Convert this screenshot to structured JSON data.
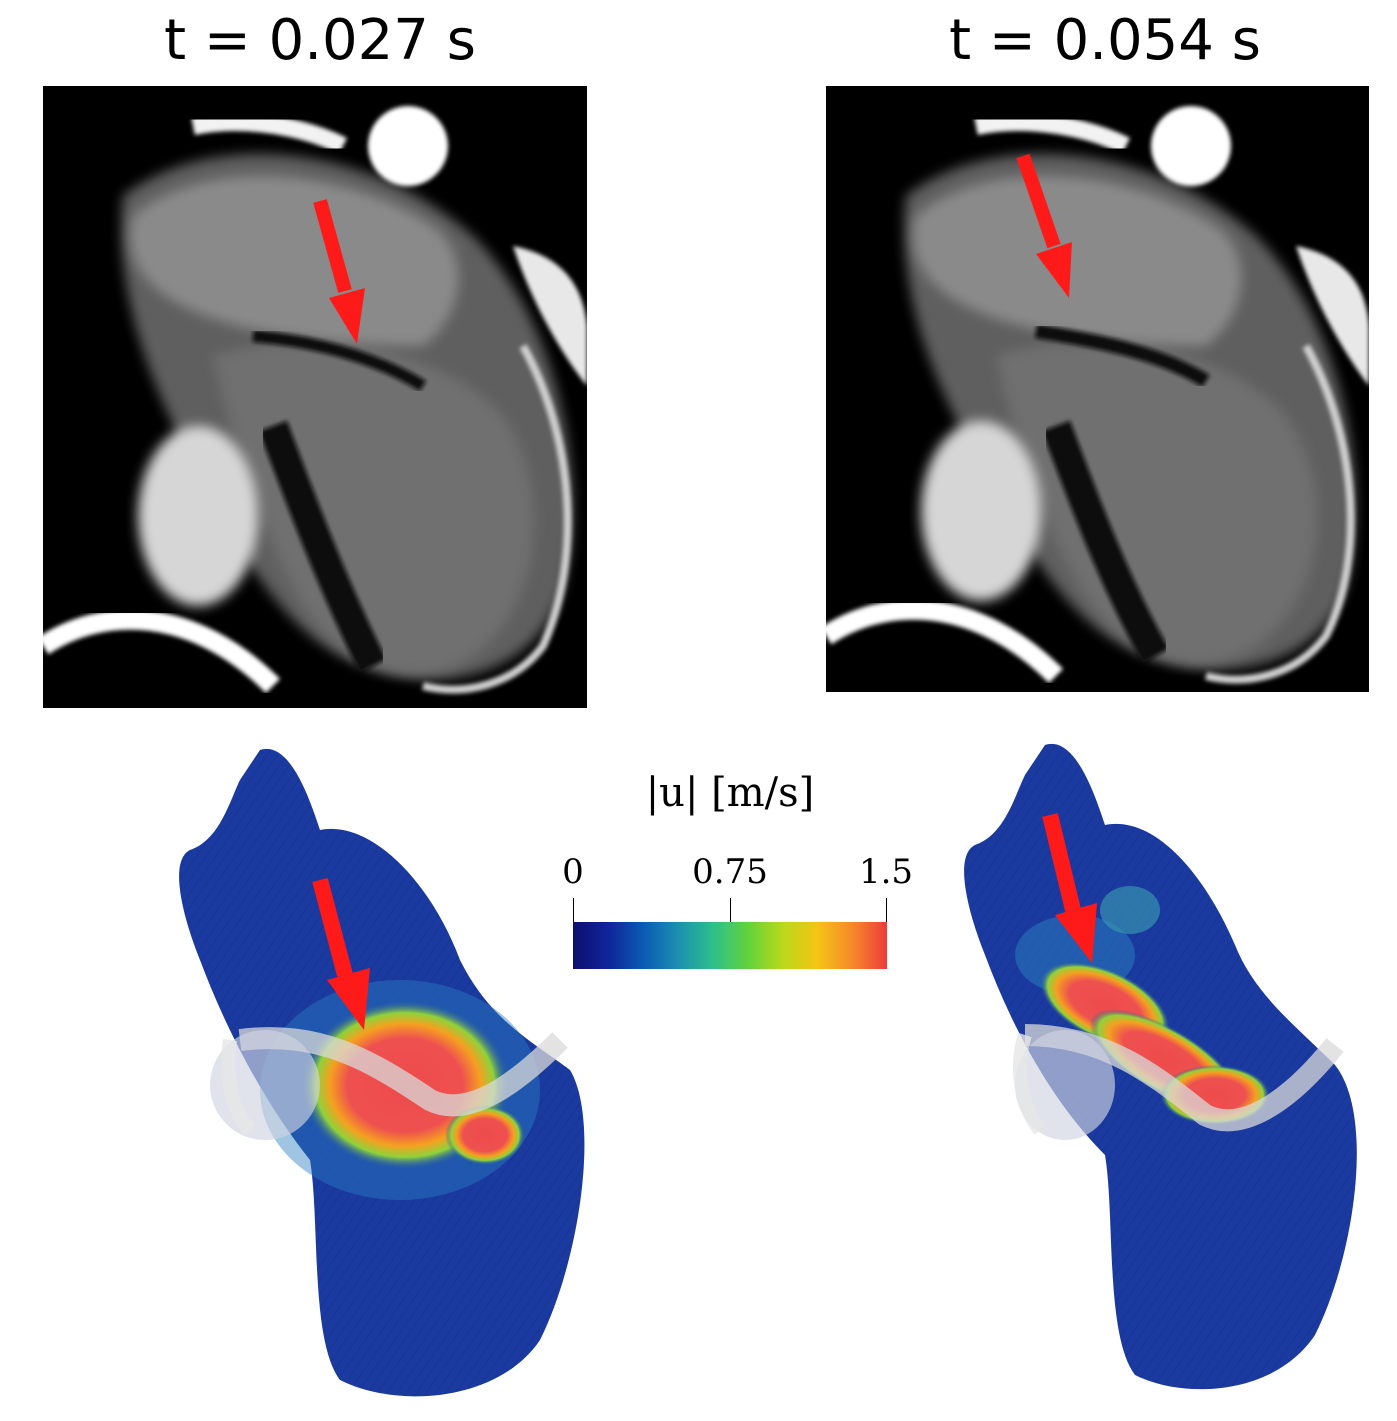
{
  "panels": {
    "left": {
      "title": "t = 0.027 s"
    },
    "right": {
      "title": "t = 0.054 s"
    }
  },
  "colorbar": {
    "title": "|u| [m/s]",
    "ticks": [
      "0",
      "0.75",
      "1.5"
    ],
    "min": 0,
    "max": 1.5,
    "colormap": [
      "#0d0f6e",
      "#10249a",
      "#0a5ab3",
      "#1c8fb0",
      "#2dbf8c",
      "#60d23c",
      "#b8d91a",
      "#f5c415",
      "#f58a2a",
      "#ee3b3b"
    ]
  },
  "colors": {
    "arrow": "#ff1a1a",
    "flow_low": "#0f2f9a",
    "flow_high": "#ee4b4b"
  }
}
